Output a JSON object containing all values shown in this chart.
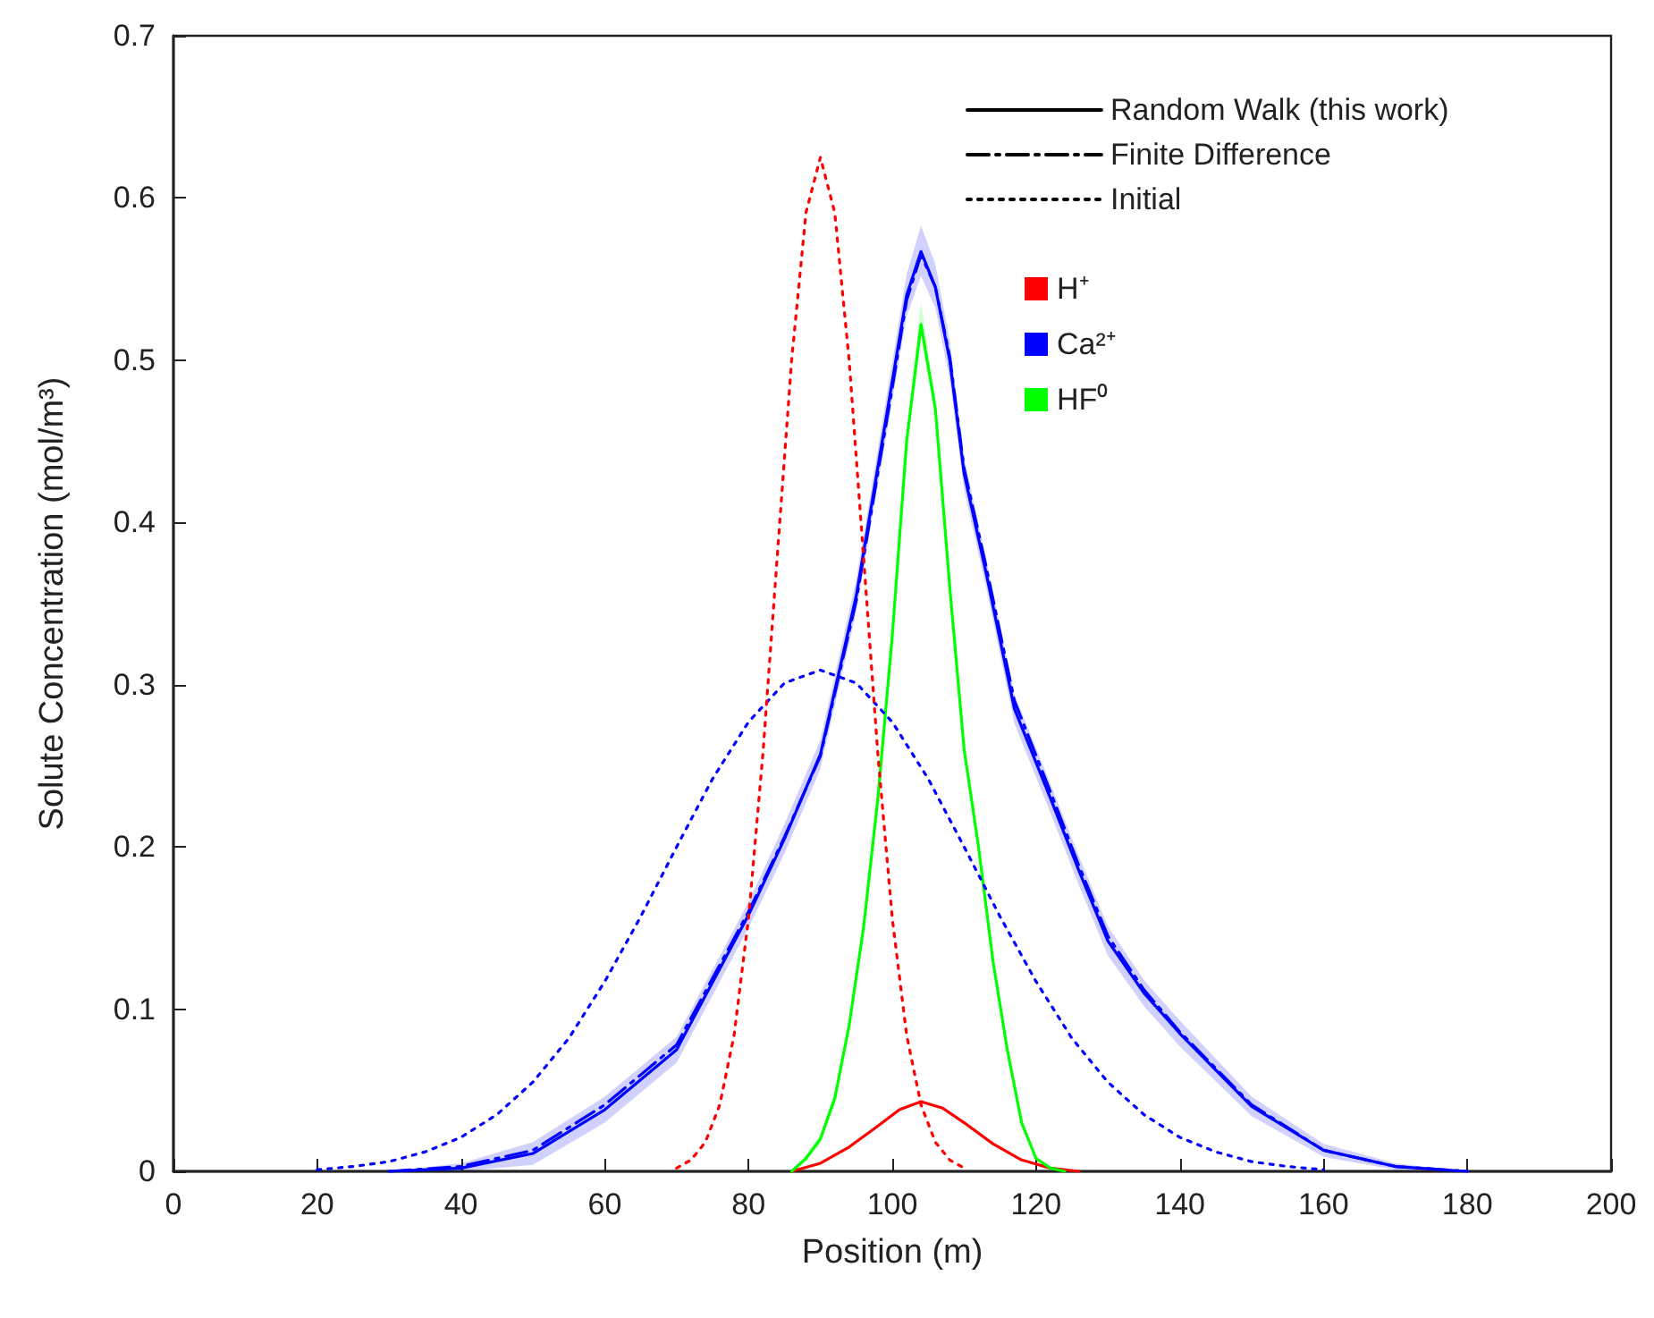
{
  "chart_data": {
    "type": "line",
    "xlabel": "Position (m)",
    "ylabel": "Solute Concentration (mol/m³)",
    "xlim": [
      0,
      200
    ],
    "xticks": [
      0,
      20,
      40,
      60,
      80,
      100,
      120,
      140,
      160,
      180,
      200
    ],
    "ylim": [
      0,
      0.7
    ],
    "yticks": [
      0,
      0.1,
      0.2,
      0.3,
      0.4,
      0.5,
      0.6,
      0.7
    ],
    "grid": false,
    "legend": "top right",
    "marker": "none",
    "series": [
      {
        "name": "Random Walk (this work)",
        "color": "#000000",
        "line_style": "solid"
      },
      {
        "name": "Finite Difference",
        "color": "#000000",
        "line_style": "dashed"
      },
      {
        "name": "Initial",
        "color": "#000000",
        "line_style": "dotted"
      },
      {
        "name": "H⁺",
        "color": "#ff0000",
        "line_style": "solid",
        "x": [
          86,
          90,
          94,
          98,
          101,
          104,
          107,
          110,
          114,
          118,
          122,
          126
        ],
        "values": [
          0,
          0.005,
          0.015,
          0.028,
          0.038,
          0.043,
          0.039,
          0.03,
          0.017,
          0.007,
          0.002,
          0
        ]
      },
      {
        "name": "Ca²⁺",
        "color": "#0000ff",
        "line_style": "solid",
        "x": [
          30,
          40,
          50,
          60,
          70,
          80,
          85,
          90,
          95,
          100,
          102,
          104,
          106,
          108,
          110,
          113,
          117,
          122,
          126,
          130,
          135,
          140,
          150,
          160,
          170,
          180
        ],
        "values": [
          0,
          0.002,
          0.011,
          0.038,
          0.075,
          0.158,
          0.205,
          0.257,
          0.355,
          0.487,
          0.54,
          0.567,
          0.545,
          0.5,
          0.43,
          0.37,
          0.285,
          0.23,
          0.185,
          0.142,
          0.11,
          0.085,
          0.04,
          0.013,
          0.003,
          0
        ],
        "lower": [
          0,
          0,
          0.004,
          0.03,
          0.067,
          0.15,
          0.196,
          0.248,
          0.345,
          0.475,
          0.527,
          0.552,
          0.532,
          0.488,
          0.42,
          0.361,
          0.276,
          0.221,
          0.176,
          0.133,
          0.102,
          0.077,
          0.034,
          0.009,
          0.001,
          0
        ],
        "upper": [
          0,
          0.005,
          0.018,
          0.046,
          0.083,
          0.166,
          0.214,
          0.266,
          0.365,
          0.499,
          0.553,
          0.583,
          0.559,
          0.512,
          0.44,
          0.379,
          0.294,
          0.239,
          0.194,
          0.151,
          0.118,
          0.093,
          0.046,
          0.017,
          0.005,
          0
        ]
      },
      {
        "name": "HF⁰",
        "color": "#00ff00",
        "line_style": "solid",
        "x": [
          86,
          88,
          90,
          92,
          94,
          96,
          98,
          100,
          102,
          104,
          106,
          108,
          110,
          112,
          114,
          116,
          118,
          120,
          122,
          124
        ],
        "values": [
          0,
          0.008,
          0.02,
          0.045,
          0.09,
          0.15,
          0.23,
          0.33,
          0.45,
          0.522,
          0.47,
          0.36,
          0.26,
          0.2,
          0.13,
          0.075,
          0.03,
          0.008,
          0.002,
          0
        ],
        "lower": [
          0,
          0.006,
          0.017,
          0.041,
          0.086,
          0.146,
          0.226,
          0.325,
          0.444,
          0.514,
          0.464,
          0.355,
          0.256,
          0.197,
          0.127,
          0.073,
          0.029,
          0.007,
          0.001,
          0
        ],
        "upper": [
          0,
          0.01,
          0.023,
          0.049,
          0.094,
          0.154,
          0.234,
          0.335,
          0.456,
          0.536,
          0.476,
          0.365,
          0.264,
          0.203,
          0.133,
          0.077,
          0.031,
          0.009,
          0.003,
          0
        ]
      },
      {
        "color": "#0000ff",
        "line_style": "dashed",
        "x": [
          30,
          40,
          50,
          60,
          70,
          80,
          85,
          90,
          95,
          100,
          102,
          104,
          106,
          108,
          110,
          113,
          117,
          122,
          126,
          130,
          135,
          140,
          150,
          160,
          170,
          180
        ],
        "values": [
          0,
          0.003,
          0.013,
          0.041,
          0.078,
          0.16,
          0.206,
          0.256,
          0.352,
          0.483,
          0.537,
          0.565,
          0.545,
          0.502,
          0.433,
          0.374,
          0.29,
          0.234,
          0.188,
          0.145,
          0.112,
          0.086,
          0.041,
          0.013,
          0.003,
          0
        ]
      },
      {
        "color": "#0000ff",
        "line_style": "dotted",
        "x": [
          20,
          25,
          30,
          35,
          40,
          45,
          50,
          55,
          60,
          65,
          70,
          75,
          80,
          85,
          90,
          95,
          100,
          105,
          110,
          115,
          120,
          125,
          130,
          135,
          140,
          145,
          150,
          155,
          160
        ],
        "values": [
          0.001,
          0.003,
          0.006,
          0.012,
          0.021,
          0.035,
          0.055,
          0.082,
          0.117,
          0.157,
          0.2,
          0.242,
          0.277,
          0.301,
          0.309,
          0.301,
          0.277,
          0.242,
          0.2,
          0.157,
          0.117,
          0.082,
          0.055,
          0.035,
          0.021,
          0.012,
          0.006,
          0.003,
          0.001
        ]
      },
      {
        "color": "#ff0000",
        "line_style": "dotted",
        "x": [
          70,
          72,
          74,
          76,
          78,
          80,
          82,
          84,
          86,
          88,
          90,
          92,
          94,
          96,
          98,
          100,
          102,
          104,
          106,
          108,
          110
        ],
        "values": [
          0.002,
          0.007,
          0.018,
          0.041,
          0.084,
          0.156,
          0.257,
          0.379,
          0.5,
          0.591,
          0.625,
          0.591,
          0.5,
          0.379,
          0.257,
          0.156,
          0.084,
          0.041,
          0.018,
          0.007,
          0.002
        ]
      }
    ]
  }
}
